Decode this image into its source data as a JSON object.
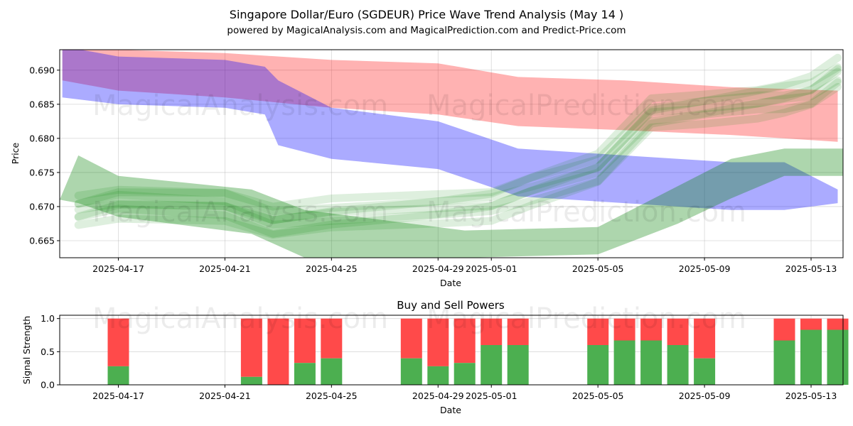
{
  "chart_data": [
    {
      "type": "area",
      "title": "Singapore Dollar/Euro (SGDEUR) Price Wave Trend Analysis (May 14 )",
      "subtitle": "powered by MagicalAnalysis.com and MagicalPrediction.com and Predict-Price.com",
      "xlabel": "Date",
      "ylabel": "Price",
      "xlim": [
        -2.2,
        27.2
      ],
      "ylim": [
        0.6625,
        0.693
      ],
      "x_ticks": [
        {
          "day": 0,
          "label": "2025-04-17"
        },
        {
          "day": 4,
          "label": "2025-04-21"
        },
        {
          "day": 8,
          "label": "2025-04-25"
        },
        {
          "day": 12,
          "label": "2025-04-29"
        },
        {
          "day": 14,
          "label": "2025-05-01"
        },
        {
          "day": 18,
          "label": "2025-05-05"
        },
        {
          "day": 22,
          "label": "2025-05-09"
        },
        {
          "day": 26,
          "label": "2025-05-13"
        }
      ],
      "y_ticks": [
        0.665,
        0.67,
        0.675,
        0.68,
        0.685,
        0.69
      ],
      "y_tick_labels": [
        "0.665",
        "0.670",
        "0.675",
        "0.680",
        "0.685",
        "0.690"
      ],
      "grid": true,
      "colors": {
        "red": "#ff0000",
        "blue": "#0000ff",
        "green": "#008000"
      },
      "bands": [
        {
          "name": "red-band",
          "color": "#ff0000",
          "opacity": 0.3,
          "x": [
            -2.1,
            0,
            4,
            8,
            12,
            15,
            19,
            23,
            27
          ],
          "upper": [
            0.6935,
            0.693,
            0.6925,
            0.6915,
            0.691,
            0.689,
            0.6885,
            0.6875,
            0.687
          ],
          "lower": [
            0.6885,
            0.687,
            0.686,
            0.6845,
            0.6835,
            0.6818,
            0.6812,
            0.6805,
            0.6795
          ]
        },
        {
          "name": "blue-band",
          "color": "#0000ff",
          "opacity": 0.33,
          "x": [
            -2.1,
            0,
            4,
            5.5,
            6,
            8,
            12,
            15,
            19,
            23,
            25,
            27
          ],
          "upper": [
            0.6935,
            0.692,
            0.6915,
            0.6905,
            0.6885,
            0.6845,
            0.6825,
            0.6785,
            0.6775,
            0.6765,
            0.6765,
            0.6725
          ],
          "lower": [
            0.686,
            0.685,
            0.6845,
            0.6835,
            0.679,
            0.677,
            0.6755,
            0.6715,
            0.6705,
            0.6695,
            0.6695,
            0.6705
          ]
        },
        {
          "name": "green-band-low",
          "color": "#008000",
          "opacity": 0.32,
          "x": [
            -2.2,
            -1.5,
            0,
            5,
            7,
            13,
            18,
            21,
            23,
            25,
            27.2
          ],
          "upper": [
            0.671,
            0.6775,
            0.6745,
            0.6725,
            0.6695,
            0.6665,
            0.667,
            0.673,
            0.677,
            0.6785,
            0.6785
          ],
          "lower": [
            0.671,
            0.6705,
            0.6685,
            0.666,
            0.6625,
            0.6625,
            0.663,
            0.6675,
            0.6712,
            0.6745,
            0.6745
          ]
        }
      ],
      "wave_lines": {
        "color": "#008000",
        "x": [
          -1.5,
          0,
          4,
          5.8,
          8,
          12,
          14,
          15.5,
          18,
          20,
          22,
          24,
          25,
          26,
          27
        ],
        "center": [
          0.6695,
          0.6708,
          0.6703,
          0.6678,
          0.6688,
          0.6698,
          0.6705,
          0.6725,
          0.6755,
          0.6835,
          0.6845,
          0.6855,
          0.686,
          0.6868,
          0.6895
        ],
        "offsets": [
          -0.0022,
          -0.0014,
          -0.0006,
          0.0,
          0.0006,
          0.0013,
          0.002
        ]
      },
      "watermarks": [
        "MagicalAnalysis.com",
        "MagicalPrediction.com"
      ]
    },
    {
      "type": "bar",
      "title": "Buy and Sell Powers",
      "xlabel": "Date",
      "ylabel": "Signal Strength",
      "xlim": [
        -2.2,
        27.2
      ],
      "ylim": [
        0,
        1.05
      ],
      "y_ticks": [
        0.0,
        0.5,
        1.0
      ],
      "y_tick_labels": [
        "0.0",
        "0.5",
        "1.0"
      ],
      "x_ticks": [
        {
          "day": 0,
          "label": "2025-04-17"
        },
        {
          "day": 4,
          "label": "2025-04-21"
        },
        {
          "day": 8,
          "label": "2025-04-25"
        },
        {
          "day": 12,
          "label": "2025-04-29"
        },
        {
          "day": 14,
          "label": "2025-05-01"
        },
        {
          "day": 18,
          "label": "2025-05-05"
        },
        {
          "day": 22,
          "label": "2025-05-09"
        },
        {
          "day": 26,
          "label": "2025-05-13"
        }
      ],
      "buy_color": "#4caf50",
      "sell_color": "#ff4a4a",
      "days": [
        0,
        5,
        6,
        7,
        8,
        11,
        12,
        13,
        14,
        15,
        18,
        19,
        20,
        21,
        22,
        25,
        26,
        27
      ],
      "buy": [
        0.28,
        0.12,
        0.0,
        0.33,
        0.4,
        0.4,
        0.28,
        0.33,
        0.6,
        0.6,
        0.6,
        0.67,
        0.67,
        0.6,
        0.4,
        0.67,
        0.83,
        0.83
      ],
      "watermarks": [
        "MagicalAnalysis.com",
        "MagicalPrediction.com"
      ]
    }
  ]
}
